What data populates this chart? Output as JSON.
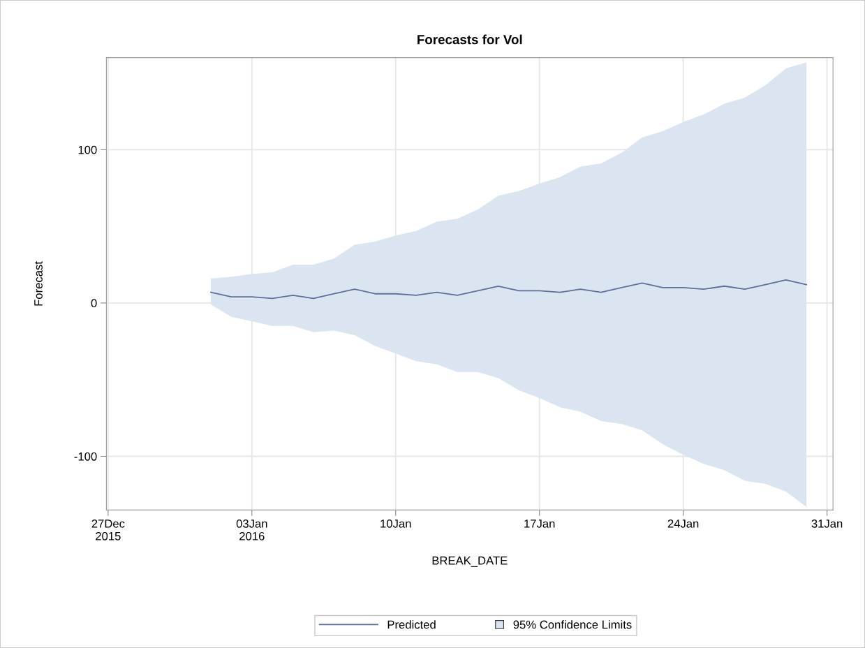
{
  "chart_data": {
    "type": "line",
    "title": "Forecasts for Vol",
    "xlabel": "BREAK_DATE",
    "ylabel": "Forecast",
    "x": [
      "2016-01-01",
      "2016-01-02",
      "2016-01-03",
      "2016-01-04",
      "2016-01-05",
      "2016-01-06",
      "2016-01-07",
      "2016-01-08",
      "2016-01-09",
      "2016-01-10",
      "2016-01-11",
      "2016-01-12",
      "2016-01-13",
      "2016-01-14",
      "2016-01-15",
      "2016-01-16",
      "2016-01-17",
      "2016-01-18",
      "2016-01-19",
      "2016-01-20",
      "2016-01-21",
      "2016-01-22",
      "2016-01-23",
      "2016-01-24",
      "2016-01-25",
      "2016-01-26",
      "2016-01-27",
      "2016-01-28",
      "2016-01-29",
      "2016-01-30"
    ],
    "series": [
      {
        "name": "Predicted",
        "color": "#5d6f9c",
        "values": [
          7,
          4,
          4,
          3,
          5,
          3,
          6,
          9,
          6,
          6,
          5,
          7,
          5,
          8,
          11,
          8,
          8,
          7,
          9,
          7,
          10,
          13,
          10,
          10,
          9,
          11,
          9,
          12,
          15,
          12
        ]
      },
      {
        "name": "95% Confidence Limits",
        "type": "area",
        "color": "#dbe5f1",
        "values": [
          null,
          null,
          null,
          null,
          null,
          null,
          null,
          null,
          null,
          null,
          null,
          null,
          null,
          null,
          null,
          null,
          null,
          null,
          null,
          null,
          null,
          null,
          null,
          null,
          null,
          null,
          null,
          null,
          null,
          null
        ],
        "lower": [
          -1,
          -9,
          -12,
          -15,
          -15,
          -19,
          -18,
          -21,
          -28,
          -33,
          -38,
          -40,
          -45,
          -45,
          -49,
          -57,
          -62,
          -68,
          -71,
          -77,
          -79,
          -83,
          -92,
          -99,
          -105,
          -109,
          -116,
          -118,
          -123,
          -133
        ],
        "upper": [
          16,
          17,
          19,
          20,
          25,
          25,
          29,
          38,
          40,
          44,
          47,
          53,
          55,
          61,
          70,
          73,
          78,
          82,
          89,
          91,
          98,
          108,
          112,
          118,
          123,
          130,
          134,
          142,
          153,
          157
        ]
      }
    ],
    "xlim": [
      "2015-12-26T22:00",
      "2016-01-31T07:00"
    ],
    "xticks": [
      {
        "value": "2015-12-27",
        "label": "27Dec\n2015"
      },
      {
        "value": "2016-01-03",
        "label": "03Jan\n2016"
      },
      {
        "value": "2016-01-10",
        "label": "10Jan"
      },
      {
        "value": "2016-01-17",
        "label": "17Jan"
      },
      {
        "value": "2016-01-24",
        "label": "24Jan"
      },
      {
        "value": "2016-01-31",
        "label": "31Jan"
      }
    ],
    "ylim": [
      -135,
      160
    ],
    "yticks": [
      -100,
      0,
      100
    ],
    "grid": true,
    "legend": "bottom",
    "line_style": "solid",
    "marker": "none"
  }
}
